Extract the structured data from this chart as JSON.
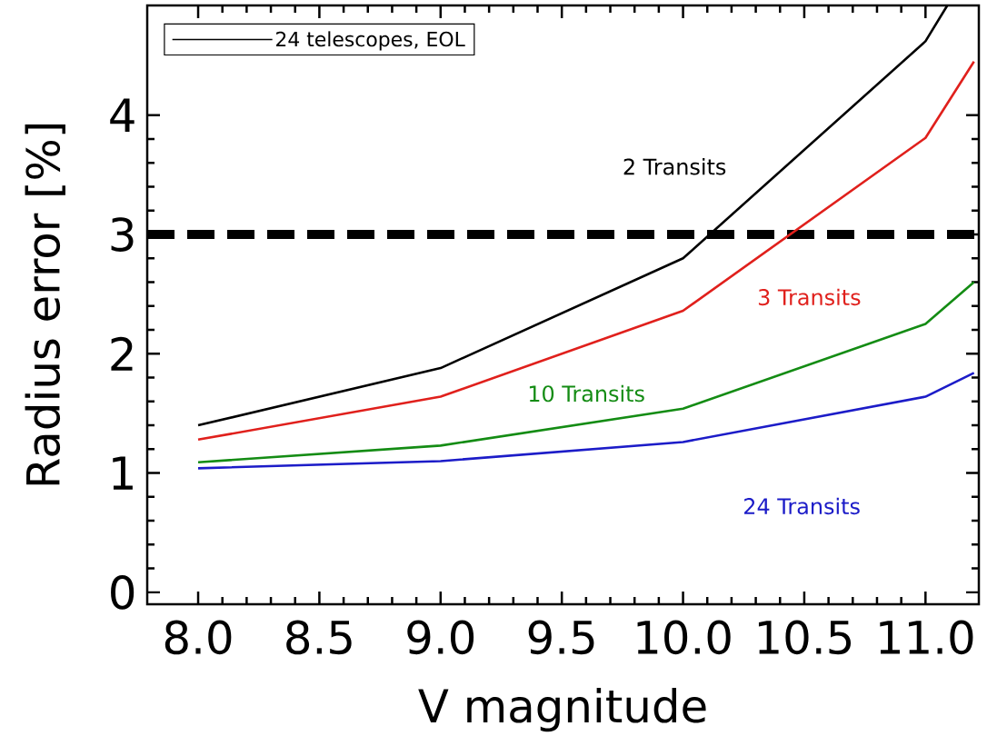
{
  "chart_data": {
    "type": "line",
    "xlabel": "V magnitude",
    "ylabel": "Radius error [%]",
    "xlim": [
      7.79,
      11.22
    ],
    "ylim": [
      -0.1,
      4.92
    ],
    "xticks": [
      {
        "value": 8,
        "label": "8.0"
      },
      {
        "value": 8.5,
        "label": "8.5"
      },
      {
        "value": 9,
        "label": "9.0"
      },
      {
        "value": 9.5,
        "label": "9.5"
      },
      {
        "value": 10,
        "label": "10.0"
      },
      {
        "value": 10.5,
        "label": "10.5"
      },
      {
        "value": 11,
        "label": "11.0"
      }
    ],
    "yticks": [
      0,
      1,
      2,
      3,
      4
    ],
    "x": [
      8,
      9,
      10,
      11,
      11.2
    ],
    "series": [
      {
        "name": "24 telescopes, EOL",
        "color": "#000000",
        "x": [
          8,
          9,
          10,
          11,
          11.09
        ],
        "values": [
          1.4,
          1.88,
          2.8,
          4.62,
          4.92
        ]
      },
      {
        "color": "#e0201c",
        "values": [
          1.28,
          1.64,
          2.36,
          3.81,
          4.45
        ]
      },
      {
        "color": "#148c14",
        "values": [
          1.09,
          1.23,
          1.54,
          2.25,
          2.6
        ]
      },
      {
        "color": "#1c1cc8",
        "values": [
          1.04,
          1.1,
          1.26,
          1.64,
          1.84
        ]
      }
    ],
    "ref_lines": [
      {
        "axis": "y",
        "value": 3,
        "color": "#000000",
        "line_style": "dashed"
      }
    ],
    "annotations": [
      "2 Transits",
      "3 Transits",
      "10 Transits",
      "24 Transits"
    ],
    "legend": "top left"
  }
}
